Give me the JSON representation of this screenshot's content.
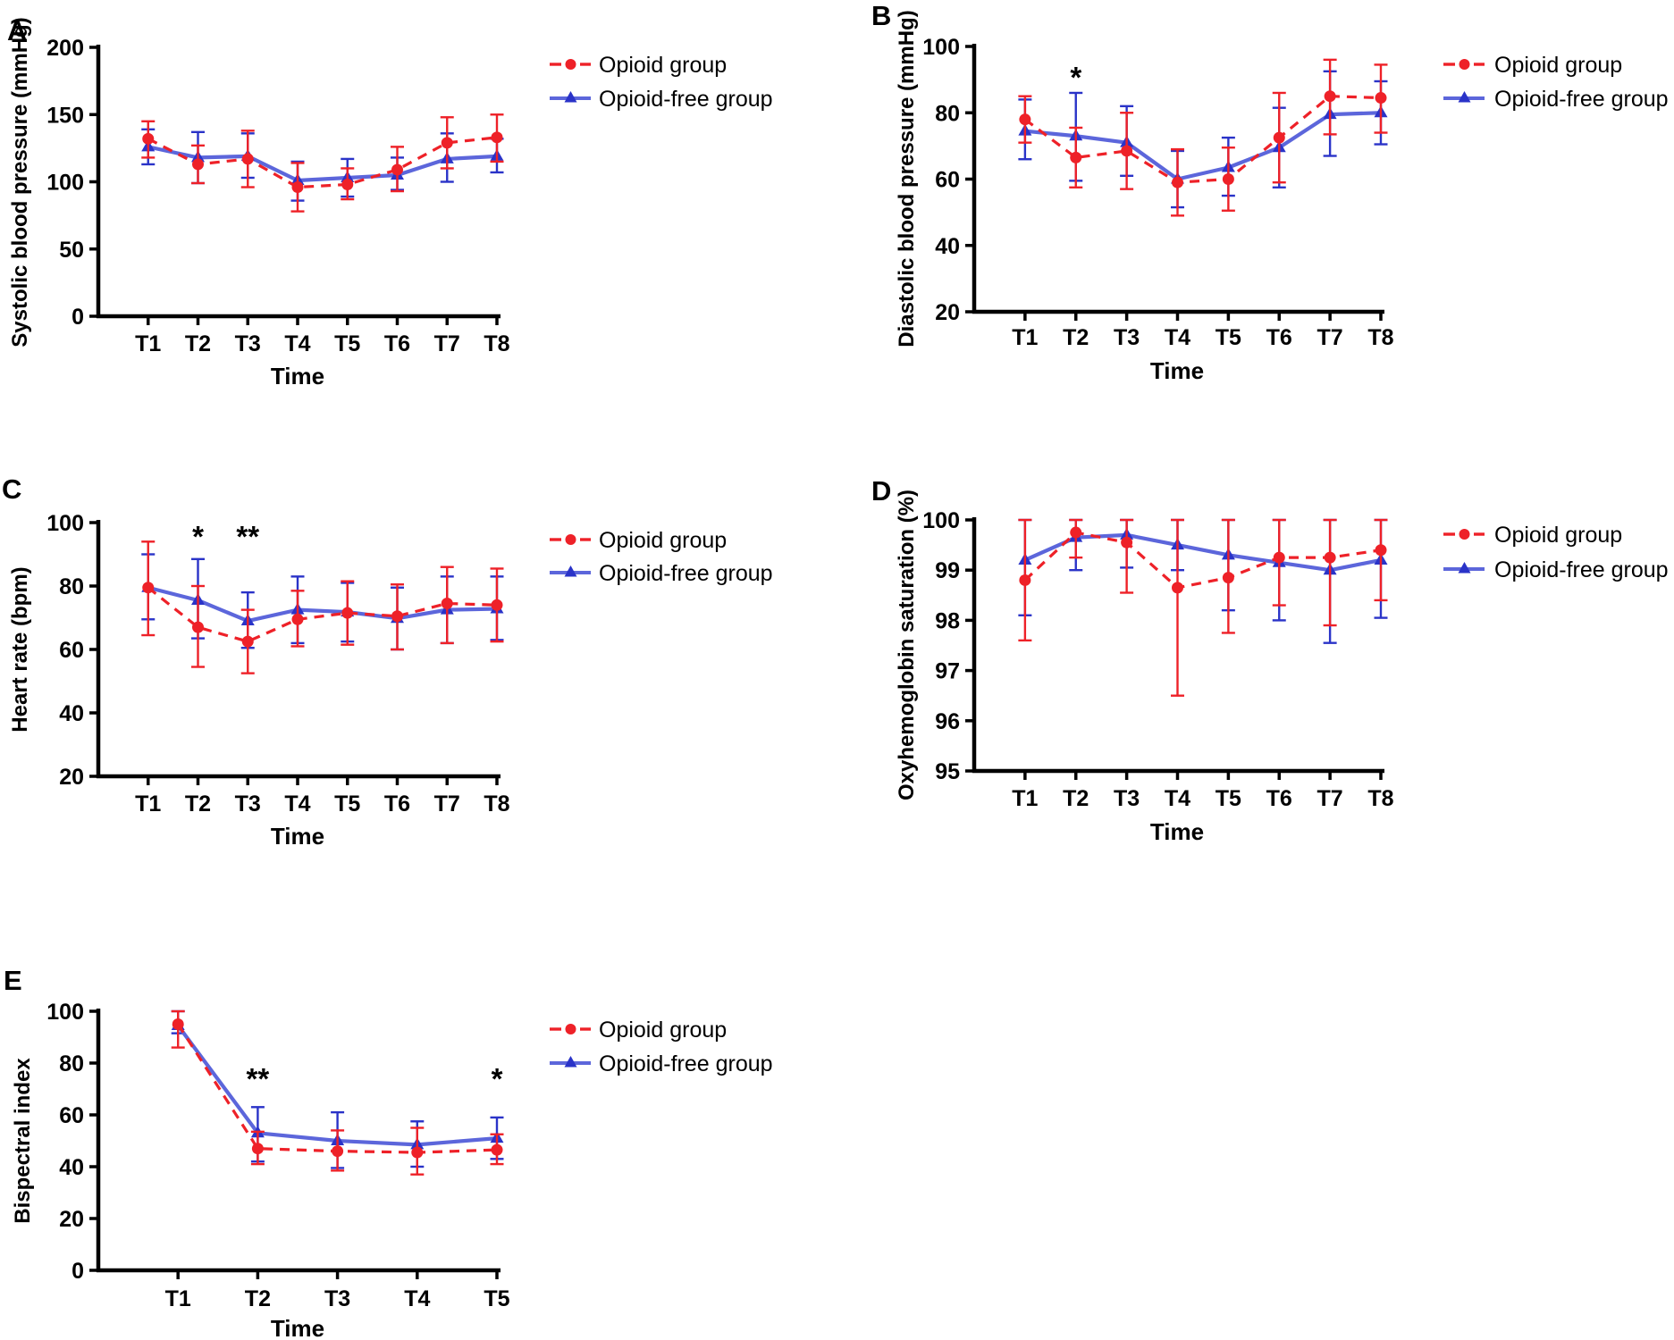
{
  "legend_labels": {
    "opioid": "Opioid group",
    "opioid_free": "Opioid-free group"
  },
  "colors": {
    "red": "#EE2128",
    "blue_marker": "#2A33C8",
    "blue_line": "#5C66DB",
    "axis": "#000000",
    "background": "#ffffff"
  },
  "chart_data": [
    {
      "panel_label": "A",
      "type": "line",
      "ylabel": "Systolic blood pressure (mmHg)",
      "xlabel": "Time",
      "categories": [
        "T1",
        "T2",
        "T3",
        "T4",
        "T5",
        "T6",
        "T7",
        "T8"
      ],
      "ylim": [
        0,
        200
      ],
      "yticks": [
        0,
        50,
        100,
        150,
        200
      ],
      "grid": false,
      "legend_position": "right-top",
      "series": [
        {
          "name": "Opioid group",
          "color_key": "red",
          "line_style": "dashed",
          "marker": "circle",
          "values": [
            132,
            113,
            117,
            96,
            98,
            109,
            129,
            133
          ],
          "err_lo": [
            118,
            99,
            96,
            78,
            87,
            93,
            110,
            115
          ],
          "err_hi": [
            145,
            127,
            138,
            114,
            110,
            126,
            148,
            150
          ]
        },
        {
          "name": "Opioid-free group",
          "color_key": "blue",
          "line_style": "solid",
          "marker": "triangle",
          "values": [
            126,
            118,
            119,
            101,
            103,
            105,
            117,
            119
          ],
          "err_lo": [
            113,
            99,
            103,
            86,
            89,
            94,
            100,
            107
          ],
          "err_hi": [
            139,
            137,
            136,
            115,
            117,
            118,
            136,
            132
          ]
        }
      ],
      "significance": []
    },
    {
      "panel_label": "B",
      "type": "line",
      "ylabel": "Diastolic blood pressure (mmHg)",
      "xlabel": "Time",
      "categories": [
        "T1",
        "T2",
        "T3",
        "T4",
        "T5",
        "T6",
        "T7",
        "T8"
      ],
      "ylim": [
        20,
        100
      ],
      "yticks": [
        20,
        40,
        60,
        80,
        100
      ],
      "grid": false,
      "legend_position": "right-top",
      "series": [
        {
          "name": "Opioid group",
          "color_key": "red",
          "line_style": "dashed",
          "marker": "circle",
          "values": [
            78,
            66.5,
            68.5,
            59,
            60,
            72.5,
            85,
            84.5
          ],
          "err_lo": [
            71,
            57.5,
            57,
            49,
            50.5,
            59,
            73.5,
            74
          ],
          "err_hi": [
            85,
            75.5,
            80,
            69,
            69.5,
            86,
            96,
            94.5
          ]
        },
        {
          "name": "Opioid-free group",
          "color_key": "blue",
          "line_style": "solid",
          "marker": "triangle",
          "values": [
            74.5,
            73,
            71,
            60,
            63.5,
            69.5,
            79.5,
            80
          ],
          "err_lo": [
            66,
            59.5,
            61,
            51.5,
            55,
            57.5,
            67,
            70.5
          ],
          "err_hi": [
            84,
            86,
            82,
            68.5,
            72.5,
            81.5,
            92.5,
            89.5
          ]
        }
      ],
      "significance": [
        {
          "category": "T2",
          "text": "*"
        }
      ]
    },
    {
      "panel_label": "C",
      "type": "line",
      "ylabel": "Heart rate (bpm)",
      "xlabel": "Time",
      "categories": [
        "T1",
        "T2",
        "T3",
        "T4",
        "T5",
        "T6",
        "T7",
        "T8"
      ],
      "ylim": [
        20,
        100
      ],
      "yticks": [
        20,
        40,
        60,
        80,
        100
      ],
      "grid": false,
      "legend_position": "right-top",
      "series": [
        {
          "name": "Opioid group",
          "color_key": "red",
          "line_style": "dashed",
          "marker": "circle",
          "values": [
            79.5,
            67,
            62.5,
            69.5,
            71.5,
            70.5,
            74.5,
            74
          ],
          "err_lo": [
            64.5,
            54.5,
            52.5,
            61,
            61.5,
            60,
            62,
            62.5
          ],
          "err_hi": [
            94,
            80,
            72.5,
            78.5,
            81.5,
            80.5,
            86,
            85.5
          ]
        },
        {
          "name": "Opioid-free group",
          "color_key": "blue",
          "line_style": "solid",
          "marker": "triangle",
          "values": [
            79.5,
            75.5,
            69,
            72.5,
            71.8,
            69.8,
            72.5,
            72.8
          ],
          "err_lo": [
            69.5,
            63.5,
            60.5,
            62,
            62.5,
            60,
            62,
            63
          ],
          "err_hi": [
            90,
            88.5,
            78,
            83,
            81,
            79.5,
            83,
            83
          ]
        }
      ],
      "significance": [
        {
          "category": "T2",
          "text": "*"
        },
        {
          "category": "T3",
          "text": "**"
        }
      ]
    },
    {
      "panel_label": "D",
      "type": "line",
      "ylabel": "Oxyhemoglobin saturation (%)",
      "xlabel": "Time",
      "categories": [
        "T1",
        "T2",
        "T3",
        "T4",
        "T5",
        "T6",
        "T7",
        "T8"
      ],
      "ylim": [
        95,
        100
      ],
      "yticks": [
        95,
        96,
        97,
        98,
        99,
        100
      ],
      "grid": false,
      "legend_position": "right-top",
      "series": [
        {
          "name": "Opioid group",
          "color_key": "red",
          "line_style": "dashed",
          "marker": "circle",
          "values": [
            98.8,
            99.75,
            99.55,
            98.65,
            98.85,
            99.25,
            99.25,
            99.4
          ],
          "err_lo": [
            97.6,
            99.25,
            98.55,
            96.5,
            97.75,
            98.3,
            97.9,
            98.4
          ],
          "err_hi": [
            100,
            100,
            100,
            100,
            100,
            100,
            100,
            100
          ]
        },
        {
          "name": "Opioid-free group",
          "color_key": "blue",
          "line_style": "solid",
          "marker": "triangle",
          "values": [
            99.2,
            99.65,
            99.7,
            99.5,
            99.3,
            99.15,
            99.0,
            99.2
          ],
          "err_lo": [
            98.1,
            99.0,
            99.05,
            99.0,
            98.2,
            98.0,
            97.55,
            98.05
          ],
          "err_hi": [
            100,
            100,
            100,
            100,
            100,
            100,
            100,
            100
          ]
        }
      ],
      "significance": []
    },
    {
      "panel_label": "E",
      "type": "line",
      "ylabel": "Bispectral index",
      "xlabel": "Time",
      "categories": [
        "T1",
        "T2",
        "T3",
        "T4",
        "T5"
      ],
      "ylim": [
        0,
        100
      ],
      "yticks": [
        0,
        20,
        40,
        60,
        80,
        100
      ],
      "grid": false,
      "legend_position": "right-top",
      "series": [
        {
          "name": "Opioid group",
          "color_key": "red",
          "line_style": "dashed",
          "marker": "circle",
          "values": [
            95,
            47,
            46,
            45.5,
            46.5
          ],
          "err_lo": [
            86,
            41,
            38.5,
            37,
            41
          ],
          "err_hi": [
            100,
            53.5,
            54,
            55,
            52.5
          ]
        },
        {
          "name": "Opioid-free group",
          "color_key": "blue",
          "line_style": "solid",
          "marker": "triangle",
          "values": [
            94.5,
            53,
            50,
            48.5,
            51
          ],
          "err_lo": [
            91.5,
            42,
            39.5,
            40,
            43
          ],
          "err_hi": [
            100,
            63,
            61,
            57.5,
            59
          ]
        }
      ],
      "significance": [
        {
          "category": "T2",
          "text": "**"
        },
        {
          "category": "T5",
          "text": "*"
        }
      ]
    }
  ]
}
